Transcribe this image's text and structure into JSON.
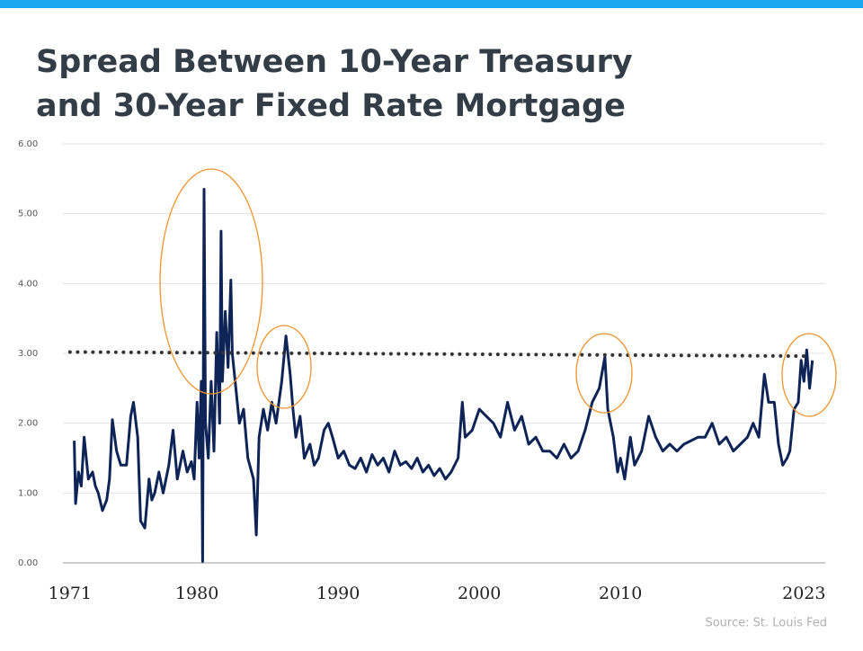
{
  "chart_data": {
    "type": "line",
    "title_lines": [
      "Spread Between 10-Year Treasury",
      "and 30-Year Fixed Rate Mortgage"
    ],
    "source": "Source: St. Louis Fed",
    "xlim": [
      1970.5,
      2024
    ],
    "xticks": [
      1971,
      1980,
      1990,
      2000,
      2010,
      2023
    ],
    "ylim": [
      0,
      6
    ],
    "yticks": [
      {
        "value": 0,
        "label": "0.00"
      },
      {
        "value": 1,
        "label": "1.00"
      },
      {
        "value": 2,
        "label": "2.00"
      },
      {
        "value": 3,
        "label": "3.00"
      },
      {
        "value": 4,
        "label": "4.00"
      },
      {
        "value": 5,
        "label": "5.00"
      },
      {
        "value": 6,
        "label": "6.00"
      }
    ],
    "grid": true,
    "series": [
      {
        "color": "#0e2356",
        "x": [
          1971.3,
          1971.4,
          1971.6,
          1971.8,
          1972,
          1972.3,
          1972.6,
          1972.8,
          1973,
          1973.3,
          1973.6,
          1973.8,
          1974,
          1974.3,
          1974.6,
          1975,
          1975.3,
          1975.5,
          1975.8,
          1976,
          1976.3,
          1976.6,
          1976.8,
          1977,
          1977.3,
          1977.6,
          1978,
          1978.3,
          1978.6,
          1979,
          1979.3,
          1979.6,
          1979.8,
          1980,
          1980.15,
          1980.3,
          1980.4,
          1980.5,
          1980.6,
          1980.8,
          1981,
          1981.2,
          1981.4,
          1981.6,
          1981.7,
          1981.8,
          1982,
          1982.2,
          1982.4,
          1982.5,
          1982.7,
          1983,
          1983.3,
          1983.6,
          1984,
          1984.2,
          1984.4,
          1984.7,
          1985,
          1985.3,
          1985.6,
          1986,
          1986.3,
          1986.6,
          1986.8,
          1987,
          1987.3,
          1987.6,
          1988,
          1988.3,
          1988.6,
          1989,
          1989.3,
          1989.6,
          1990,
          1990.4,
          1990.8,
          1991.2,
          1991.6,
          1992,
          1992.4,
          1992.8,
          1993.2,
          1993.6,
          1994,
          1994.4,
          1994.8,
          1995.2,
          1995.6,
          1996,
          1996.4,
          1996.8,
          1997.2,
          1997.6,
          1998,
          1998.5,
          1998.8,
          1999,
          1999.5,
          2000,
          2000.5,
          2001,
          2001.5,
          2002,
          2002.5,
          2003,
          2003.5,
          2004,
          2004.5,
          2005,
          2005.5,
          2006,
          2006.5,
          2007,
          2007.5,
          2008,
          2008.5,
          2008.9,
          2009.1,
          2009.5,
          2009.8,
          2010,
          2010.3,
          2010.7,
          2011,
          2011.5,
          2012,
          2012.5,
          2013,
          2013.5,
          2014,
          2014.5,
          2015,
          2015.5,
          2016,
          2016.5,
          2017,
          2017.5,
          2018,
          2018.5,
          2019,
          2019.4,
          2019.8,
          2020.2,
          2020.5,
          2020.9,
          2021.2,
          2021.5,
          2021.8,
          2022,
          2022.3,
          2022.6,
          2022.8,
          2023,
          2023.2,
          2023.4,
          2023.6
        ],
        "values": [
          1.75,
          0.85,
          1.3,
          1.1,
          1.8,
          1.2,
          1.3,
          1.1,
          1.0,
          0.75,
          0.9,
          1.2,
          2.05,
          1.6,
          1.4,
          1.4,
          2.1,
          2.3,
          1.8,
          0.6,
          0.5,
          1.2,
          0.9,
          1.0,
          1.3,
          1.0,
          1.4,
          1.9,
          1.2,
          1.6,
          1.3,
          1.45,
          1.2,
          2.3,
          1.5,
          2.6,
          0.02,
          5.35,
          2.0,
          1.5,
          2.6,
          1.6,
          3.3,
          2.0,
          4.75,
          2.6,
          3.6,
          2.8,
          4.05,
          3.0,
          2.6,
          2.0,
          2.2,
          1.5,
          1.2,
          0.4,
          1.8,
          2.2,
          1.9,
          2.3,
          2.0,
          2.6,
          3.25,
          2.7,
          2.2,
          1.8,
          2.1,
          1.5,
          1.7,
          1.4,
          1.5,
          1.9,
          2.0,
          1.8,
          1.5,
          1.6,
          1.4,
          1.35,
          1.5,
          1.3,
          1.55,
          1.4,
          1.5,
          1.3,
          1.6,
          1.4,
          1.45,
          1.35,
          1.5,
          1.3,
          1.4,
          1.25,
          1.35,
          1.2,
          1.3,
          1.5,
          2.3,
          1.8,
          1.9,
          2.2,
          2.1,
          2.0,
          1.8,
          2.3,
          1.9,
          2.1,
          1.7,
          1.8,
          1.6,
          1.6,
          1.5,
          1.7,
          1.5,
          1.6,
          1.9,
          2.3,
          2.5,
          2.95,
          2.2,
          1.8,
          1.3,
          1.5,
          1.2,
          1.8,
          1.4,
          1.6,
          2.1,
          1.8,
          1.6,
          1.7,
          1.6,
          1.7,
          1.75,
          1.8,
          1.8,
          2.0,
          1.7,
          1.8,
          1.6,
          1.7,
          1.8,
          2.0,
          1.8,
          2.7,
          2.3,
          2.3,
          1.7,
          1.4,
          1.5,
          1.6,
          2.2,
          2.3,
          2.9,
          2.6,
          3.05,
          2.5,
          2.9
        ]
      }
    ],
    "reference_line": {
      "x": [
        1971,
        2023.5
      ],
      "values": [
        3.02,
        2.96
      ],
      "color": "#333333"
    }
  }
}
